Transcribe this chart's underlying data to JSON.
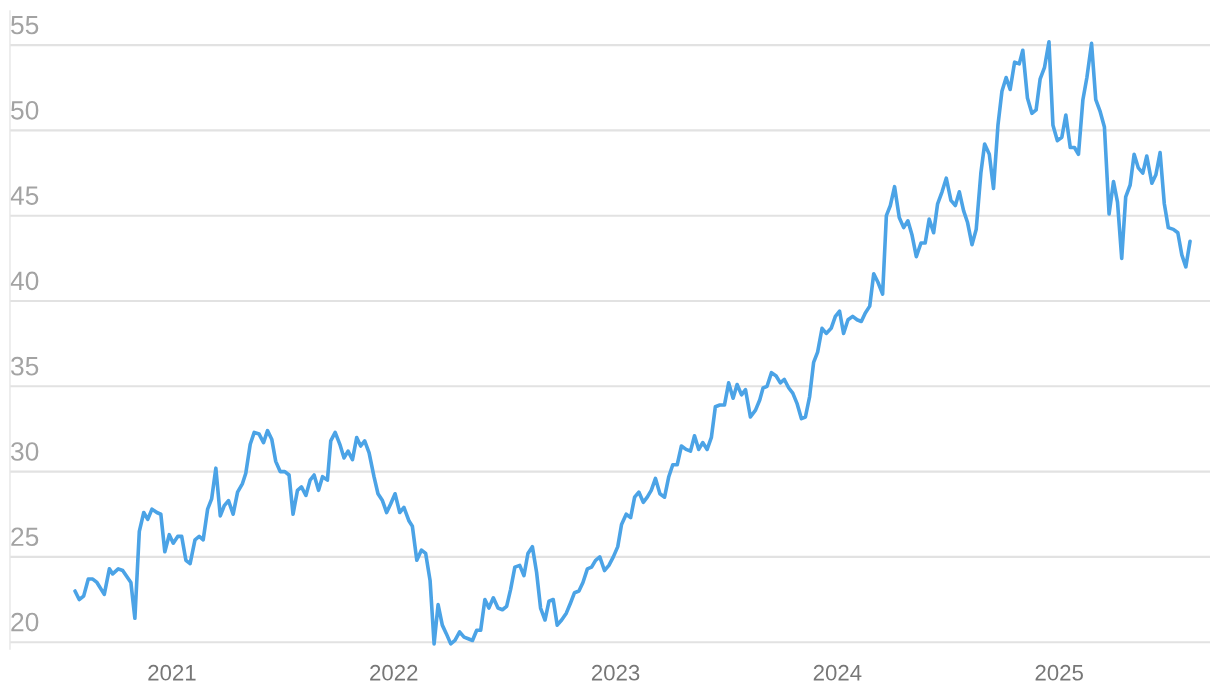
{
  "chart_data": {
    "type": "line",
    "x": [
      2020.563,
      2020.582,
      2020.602,
      2020.623,
      2020.643,
      2020.662,
      2020.695,
      2020.718,
      2020.733,
      2020.758,
      2020.778,
      2020.815,
      2020.833,
      2020.853,
      2020.873,
      2020.891,
      2020.91,
      2020.932,
      2020.95,
      2020.968,
      2020.988,
      2021.006,
      2021.026,
      2021.044,
      2021.063,
      2021.082,
      2021.104,
      2021.123,
      2021.141,
      2021.161,
      2021.179,
      2021.198,
      2021.218,
      2021.236,
      2021.255,
      2021.276,
      2021.296,
      2021.318,
      2021.333,
      2021.353,
      2021.371,
      2021.393,
      2021.413,
      2021.431,
      2021.45,
      2021.468,
      2021.488,
      2021.509,
      2021.528,
      2021.546,
      2021.566,
      2021.584,
      2021.604,
      2021.623,
      2021.641,
      2021.661,
      2021.679,
      2021.701,
      2021.716,
      2021.736,
      2021.757,
      2021.776,
      2021.794,
      2021.814,
      2021.833,
      2021.851,
      2021.869,
      2021.889,
      2021.911,
      2021.929,
      2021.949,
      2021.968,
      2021.986,
      2022.006,
      2022.027,
      2022.046,
      2022.069,
      2022.084,
      2022.104,
      2022.125,
      2022.144,
      2022.164,
      2022.182,
      2022.2,
      2022.219,
      2022.237,
      2022.257,
      2022.276,
      2022.297,
      2022.317,
      2022.336,
      2022.355,
      2022.374,
      2022.392,
      2022.411,
      2022.429,
      2022.449,
      2022.47,
      2022.49,
      2022.509,
      2022.527,
      2022.546,
      2022.568,
      2022.587,
      2022.605,
      2022.625,
      2022.644,
      2022.662,
      2022.682,
      2022.7,
      2022.719,
      2022.737,
      2022.757,
      2022.778,
      2022.797,
      2022.815,
      2022.835,
      2022.853,
      2022.873,
      2022.892,
      2022.91,
      2022.929,
      2022.95,
      2022.97,
      2022.99,
      2023.01,
      2023.027,
      2023.048,
      2023.068,
      2023.086,
      2023.105,
      2023.125,
      2023.143,
      2023.161,
      2023.18,
      2023.2,
      2023.221,
      2023.24,
      2023.258,
      2023.278,
      2023.297,
      2023.318,
      2023.338,
      2023.356,
      2023.375,
      2023.393,
      2023.413,
      2023.432,
      2023.45,
      2023.47,
      2023.491,
      2023.51,
      2023.53,
      2023.548,
      2023.568,
      2023.586,
      2023.608,
      2023.631,
      2023.65,
      2023.665,
      2023.683,
      2023.703,
      2023.724,
      2023.743,
      2023.761,
      2023.781,
      2023.799,
      2023.818,
      2023.838,
      2023.856,
      2023.875,
      2023.893,
      2023.911,
      2023.931,
      2023.95,
      2023.972,
      2023.991,
      2024.01,
      2024.028,
      2024.048,
      2024.069,
      2024.089,
      2024.108,
      2024.126,
      2024.146,
      2024.164,
      2024.183,
      2024.204,
      2024.221,
      2024.239,
      2024.258,
      2024.279,
      2024.299,
      2024.318,
      2024.336,
      2024.356,
      2024.377,
      2024.396,
      2024.414,
      2024.434,
      2024.452,
      2024.472,
      2024.491,
      2024.512,
      2024.532,
      2024.55,
      2024.569,
      2024.587,
      2024.607,
      2024.626,
      2024.647,
      2024.664,
      2024.685,
      2024.704,
      2024.724,
      2024.742,
      2024.761,
      2024.779,
      2024.799,
      2024.82,
      2024.836,
      2024.857,
      2024.877,
      2024.896,
      2024.914,
      2024.934,
      2024.954,
      2024.972,
      2024.992,
      2025.012,
      2025.03,
      2025.05,
      2025.069,
      2025.087,
      2025.107,
      2025.125,
      2025.146,
      2025.165,
      2025.185,
      2025.204,
      2025.225,
      2025.245,
      2025.263,
      2025.282,
      2025.3,
      2025.32,
      2025.338,
      2025.357,
      2025.377,
      2025.395,
      2025.418,
      2025.436,
      2025.455,
      2025.474,
      2025.492,
      2025.515,
      2025.535,
      2025.553,
      2025.571,
      2025.59
    ],
    "series": [
      {
        "color": "#4ba3e6",
        "values": [
          23.0,
          22.5,
          22.7,
          23.7,
          23.7,
          23.5,
          22.8,
          24.3,
          24.0,
          24.3,
          24.2,
          23.5,
          21.4,
          26.5,
          27.6,
          27.2,
          27.8,
          27.6,
          27.5,
          25.3,
          26.3,
          25.8,
          26.2,
          26.2,
          24.8,
          24.6,
          26.0,
          26.2,
          26.0,
          27.8,
          28.4,
          30.2,
          27.4,
          28.0,
          28.3,
          27.5,
          28.8,
          29.3,
          29.9,
          31.6,
          32.3,
          32.2,
          31.7,
          32.4,
          31.9,
          30.6,
          30.0,
          30.0,
          29.8,
          27.5,
          28.9,
          29.1,
          28.6,
          29.5,
          29.8,
          28.9,
          29.7,
          29.5,
          31.8,
          32.3,
          31.6,
          30.8,
          31.2,
          30.7,
          32.0,
          31.5,
          31.8,
          31.1,
          29.7,
          28.7,
          28.3,
          27.6,
          28.1,
          28.7,
          27.6,
          27.9,
          27.1,
          26.8,
          24.8,
          25.4,
          25.2,
          23.6,
          19.9,
          22.2,
          21.0,
          20.5,
          19.9,
          20.1,
          20.6,
          20.3,
          20.2,
          20.1,
          20.7,
          20.7,
          22.5,
          22.0,
          22.6,
          22.0,
          21.9,
          22.1,
          23.1,
          24.4,
          24.5,
          23.9,
          25.2,
          25.6,
          24.1,
          22.0,
          21.3,
          22.4,
          22.5,
          21.0,
          21.3,
          21.7,
          22.3,
          22.9,
          23.0,
          23.5,
          24.3,
          24.4,
          24.8,
          25.0,
          24.2,
          24.5,
          25.0,
          25.6,
          26.9,
          27.5,
          27.3,
          28.5,
          28.8,
          28.2,
          28.5,
          28.9,
          29.6,
          28.7,
          28.5,
          29.7,
          30.4,
          30.4,
          31.5,
          31.3,
          31.2,
          32.1,
          31.3,
          31.7,
          31.3,
          32.0,
          33.8,
          33.9,
          33.9,
          35.2,
          34.3,
          35.1,
          34.5,
          34.8,
          33.2,
          33.6,
          34.2,
          34.9,
          35.0,
          35.8,
          35.6,
          35.2,
          35.4,
          34.9,
          34.6,
          34.0,
          33.1,
          33.2,
          34.4,
          36.4,
          37.0,
          38.4,
          38.1,
          38.4,
          39.1,
          39.4,
          38.1,
          38.9,
          39.1,
          38.9,
          38.8,
          39.3,
          39.7,
          41.6,
          41.1,
          40.4,
          45.0,
          45.6,
          46.7,
          44.9,
          44.3,
          44.7,
          43.9,
          42.6,
          43.4,
          43.4,
          44.8,
          44.0,
          45.7,
          46.4,
          47.2,
          45.9,
          45.6,
          46.4,
          45.3,
          44.6,
          43.3,
          44.2,
          47.5,
          49.2,
          48.6,
          46.6,
          50.3,
          52.3,
          53.1,
          52.4,
          54.0,
          53.9,
          54.7,
          51.9,
          51.0,
          51.2,
          53.0,
          53.7,
          55.2,
          50.3,
          49.4,
          49.6,
          50.9,
          49.0,
          49.0,
          48.6,
          51.8,
          53.1,
          55.1,
          51.8,
          51.1,
          50.2,
          45.1,
          47.0,
          45.8,
          42.5,
          46.1,
          46.8,
          48.6,
          47.8,
          47.5,
          48.5,
          46.9,
          47.4,
          48.7,
          45.7,
          44.3,
          44.2,
          44.0,
          42.7,
          42.0,
          43.5
        ]
      }
    ],
    "xlim": [
      2020.27,
      2025.68
    ],
    "xticks": [
      2021,
      2022,
      2023,
      2024,
      2025
    ],
    "ylim": [
      19.6,
      57
    ],
    "yticks": [
      20,
      25,
      30,
      35,
      40,
      45,
      50,
      55
    ],
    "grid": "y"
  }
}
